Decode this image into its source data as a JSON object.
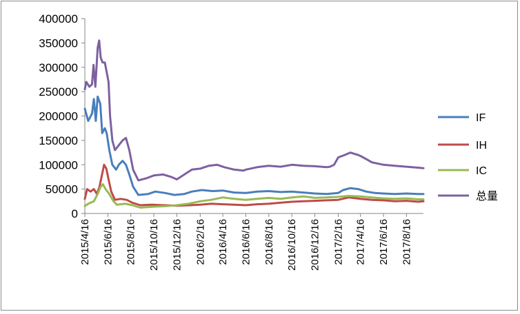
{
  "chart_data": {
    "type": "line",
    "title": "",
    "xlabel": "",
    "ylabel": "",
    "ylim": [
      0,
      400000
    ],
    "y_ticks": [
      "0",
      "50000",
      "100000",
      "150000",
      "200000",
      "250000",
      "300000",
      "350000",
      "400000"
    ],
    "x_tick_labels": [
      "2015/4/16",
      "2015/6/16",
      "2015/8/16",
      "2015/10/16",
      "2015/12/16",
      "2016/2/16",
      "2016/4/16",
      "2016/6/16",
      "2016/8/16",
      "2016/10/16",
      "2016/12/16",
      "2017/2/16",
      "2017/4/16",
      "2017/6/16",
      "2017/8/16"
    ],
    "x_range": [
      "2015/4/16",
      "2017/9/30"
    ],
    "grid": false,
    "legend_position": "right",
    "series": [
      {
        "name": "IF",
        "color": "#4a7ebb",
        "points": [
          [
            "2015/4/16",
            215000
          ],
          [
            "2015/4/25",
            190000
          ],
          [
            "2015/5/5",
            205000
          ],
          [
            "2015/5/10",
            235000
          ],
          [
            "2015/5/15",
            190000
          ],
          [
            "2015/5/20",
            240000
          ],
          [
            "2015/5/27",
            225000
          ],
          [
            "2015/6/1",
            165000
          ],
          [
            "2015/6/8",
            175000
          ],
          [
            "2015/6/13",
            165000
          ],
          [
            "2015/6/20",
            130000
          ],
          [
            "2015/6/28",
            100000
          ],
          [
            "2015/7/8",
            90000
          ],
          [
            "2015/7/15",
            100000
          ],
          [
            "2015/7/25",
            108000
          ],
          [
            "2015/8/3",
            100000
          ],
          [
            "2015/8/12",
            80000
          ],
          [
            "2015/8/22",
            55000
          ],
          [
            "2015/9/5",
            38000
          ],
          [
            "2015/10/1",
            40000
          ],
          [
            "2015/10/20",
            45000
          ],
          [
            "2015/11/15",
            42000
          ],
          [
            "2015/12/10",
            38000
          ],
          [
            "2016/1/5",
            40000
          ],
          [
            "2016/1/25",
            45000
          ],
          [
            "2016/2/20",
            48000
          ],
          [
            "2016/3/20",
            46000
          ],
          [
            "2016/4/16",
            47000
          ],
          [
            "2016/5/16",
            43000
          ],
          [
            "2016/6/16",
            42000
          ],
          [
            "2016/7/16",
            45000
          ],
          [
            "2016/8/16",
            46000
          ],
          [
            "2016/9/16",
            44000
          ],
          [
            "2016/10/16",
            45000
          ],
          [
            "2016/11/16",
            43000
          ],
          [
            "2016/12/16",
            41000
          ],
          [
            "2017/1/16",
            40000
          ],
          [
            "2017/2/16",
            42000
          ],
          [
            "2017/3/1",
            48000
          ],
          [
            "2017/3/20",
            52000
          ],
          [
            "2017/4/10",
            50000
          ],
          [
            "2017/5/1",
            45000
          ],
          [
            "2017/5/25",
            42000
          ],
          [
            "2017/6/16",
            41000
          ],
          [
            "2017/7/16",
            40000
          ],
          [
            "2017/8/16",
            41000
          ],
          [
            "2017/9/16",
            40000
          ],
          [
            "2017/9/30",
            40000
          ]
        ]
      },
      {
        "name": "IH",
        "color": "#be4b48",
        "points": [
          [
            "2015/4/16",
            30000
          ],
          [
            "2015/4/22",
            50000
          ],
          [
            "2015/5/1",
            45000
          ],
          [
            "2015/5/10",
            50000
          ],
          [
            "2015/5/18",
            40000
          ],
          [
            "2015/5/25",
            55000
          ],
          [
            "2015/6/2",
            85000
          ],
          [
            "2015/6/6",
            100000
          ],
          [
            "2015/6/12",
            92000
          ],
          [
            "2015/6/18",
            70000
          ],
          [
            "2015/6/25",
            45000
          ],
          [
            "2015/7/5",
            28000
          ],
          [
            "2015/7/20",
            30000
          ],
          [
            "2015/8/5",
            28000
          ],
          [
            "2015/8/20",
            22000
          ],
          [
            "2015/9/10",
            17000
          ],
          [
            "2015/10/10",
            18000
          ],
          [
            "2015/11/10",
            17000
          ],
          [
            "2015/12/16",
            16000
          ],
          [
            "2016/1/20",
            17000
          ],
          [
            "2016/2/16",
            18000
          ],
          [
            "2016/3/16",
            20000
          ],
          [
            "2016/4/16",
            19000
          ],
          [
            "2016/5/16",
            18000
          ],
          [
            "2016/6/16",
            17000
          ],
          [
            "2016/7/16",
            19000
          ],
          [
            "2016/8/16",
            20000
          ],
          [
            "2016/9/16",
            22000
          ],
          [
            "2016/10/16",
            24000
          ],
          [
            "2016/11/16",
            25000
          ],
          [
            "2016/12/16",
            26000
          ],
          [
            "2017/1/16",
            27000
          ],
          [
            "2017/2/16",
            28000
          ],
          [
            "2017/3/16",
            33000
          ],
          [
            "2017/4/16",
            30000
          ],
          [
            "2017/5/16",
            28000
          ],
          [
            "2017/6/16",
            27000
          ],
          [
            "2017/7/16",
            25000
          ],
          [
            "2017/8/16",
            26000
          ],
          [
            "2017/9/16",
            24000
          ],
          [
            "2017/9/30",
            25000
          ]
        ]
      },
      {
        "name": "IC",
        "color": "#98b954",
        "points": [
          [
            "2015/4/16",
            15000
          ],
          [
            "2015/4/25",
            20000
          ],
          [
            "2015/5/10",
            25000
          ],
          [
            "2015/5/20",
            40000
          ],
          [
            "2015/5/28",
            55000
          ],
          [
            "2015/6/3",
            60000
          ],
          [
            "2015/6/10",
            50000
          ],
          [
            "2015/6/20",
            40000
          ],
          [
            "2015/7/1",
            25000
          ],
          [
            "2015/7/10",
            18000
          ],
          [
            "2015/8/1",
            20000
          ],
          [
            "2015/8/20",
            17000
          ],
          [
            "2015/9/10",
            12000
          ],
          [
            "2015/10/16",
            14000
          ],
          [
            "2015/11/16",
            15000
          ],
          [
            "2015/12/16",
            17000
          ],
          [
            "2016/1/16",
            20000
          ],
          [
            "2016/2/16",
            25000
          ],
          [
            "2016/3/16",
            28000
          ],
          [
            "2016/4/16",
            33000
          ],
          [
            "2016/5/16",
            30000
          ],
          [
            "2016/6/16",
            28000
          ],
          [
            "2016/7/16",
            30000
          ],
          [
            "2016/8/16",
            32000
          ],
          [
            "2016/9/16",
            30000
          ],
          [
            "2016/10/16",
            33000
          ],
          [
            "2016/11/16",
            35000
          ],
          [
            "2016/12/16",
            32000
          ],
          [
            "2017/1/16",
            33000
          ],
          [
            "2017/2/16",
            34000
          ],
          [
            "2017/3/16",
            36000
          ],
          [
            "2017/4/16",
            35000
          ],
          [
            "2017/5/16",
            33000
          ],
          [
            "2017/6/16",
            31000
          ],
          [
            "2017/7/16",
            30000
          ],
          [
            "2017/8/16",
            31000
          ],
          [
            "2017/9/16",
            29000
          ],
          [
            "2017/9/30",
            29000
          ]
        ]
      },
      {
        "name": "总量",
        "color": "#7d60a0",
        "points": [
          [
            "2015/4/16",
            255000
          ],
          [
            "2015/4/20",
            270000
          ],
          [
            "2015/4/28",
            260000
          ],
          [
            "2015/5/5",
            265000
          ],
          [
            "2015/5/9",
            305000
          ],
          [
            "2015/5/14",
            260000
          ],
          [
            "2015/5/20",
            340000
          ],
          [
            "2015/5/24",
            355000
          ],
          [
            "2015/5/28",
            320000
          ],
          [
            "2015/6/2",
            310000
          ],
          [
            "2015/6/8",
            310000
          ],
          [
            "2015/6/13",
            290000
          ],
          [
            "2015/6/18",
            270000
          ],
          [
            "2015/6/22",
            200000
          ],
          [
            "2015/6/28",
            150000
          ],
          [
            "2015/7/5",
            130000
          ],
          [
            "2015/7/15",
            140000
          ],
          [
            "2015/7/25",
            150000
          ],
          [
            "2015/8/3",
            155000
          ],
          [
            "2015/8/12",
            130000
          ],
          [
            "2015/8/22",
            90000
          ],
          [
            "2015/9/5",
            68000
          ],
          [
            "2015/9/25",
            72000
          ],
          [
            "2015/10/16",
            78000
          ],
          [
            "2015/11/10",
            80000
          ],
          [
            "2015/12/1",
            75000
          ],
          [
            "2015/12/16",
            70000
          ],
          [
            "2016/1/5",
            80000
          ],
          [
            "2016/1/25",
            90000
          ],
          [
            "2016/2/16",
            92000
          ],
          [
            "2016/3/10",
            98000
          ],
          [
            "2016/4/1",
            100000
          ],
          [
            "2016/4/20",
            95000
          ],
          [
            "2016/5/16",
            90000
          ],
          [
            "2016/6/10",
            88000
          ],
          [
            "2016/6/16",
            90000
          ],
          [
            "2016/7/16",
            95000
          ],
          [
            "2016/8/16",
            98000
          ],
          [
            "2016/9/16",
            96000
          ],
          [
            "2016/10/16",
            100000
          ],
          [
            "2016/11/16",
            98000
          ],
          [
            "2016/12/16",
            97000
          ],
          [
            "2017/1/16",
            95000
          ],
          [
            "2017/1/25",
            96000
          ],
          [
            "2017/2/5",
            100000
          ],
          [
            "2017/2/16",
            115000
          ],
          [
            "2017/3/5",
            120000
          ],
          [
            "2017/3/20",
            125000
          ],
          [
            "2017/4/10",
            120000
          ],
          [
            "2017/4/16",
            118000
          ],
          [
            "2017/5/5",
            110000
          ],
          [
            "2017/5/16",
            105000
          ],
          [
            "2017/6/16",
            100000
          ],
          [
            "2017/7/16",
            98000
          ],
          [
            "2017/8/16",
            96000
          ],
          [
            "2017/9/16",
            94000
          ],
          [
            "2017/9/30",
            93000
          ]
        ]
      }
    ]
  }
}
